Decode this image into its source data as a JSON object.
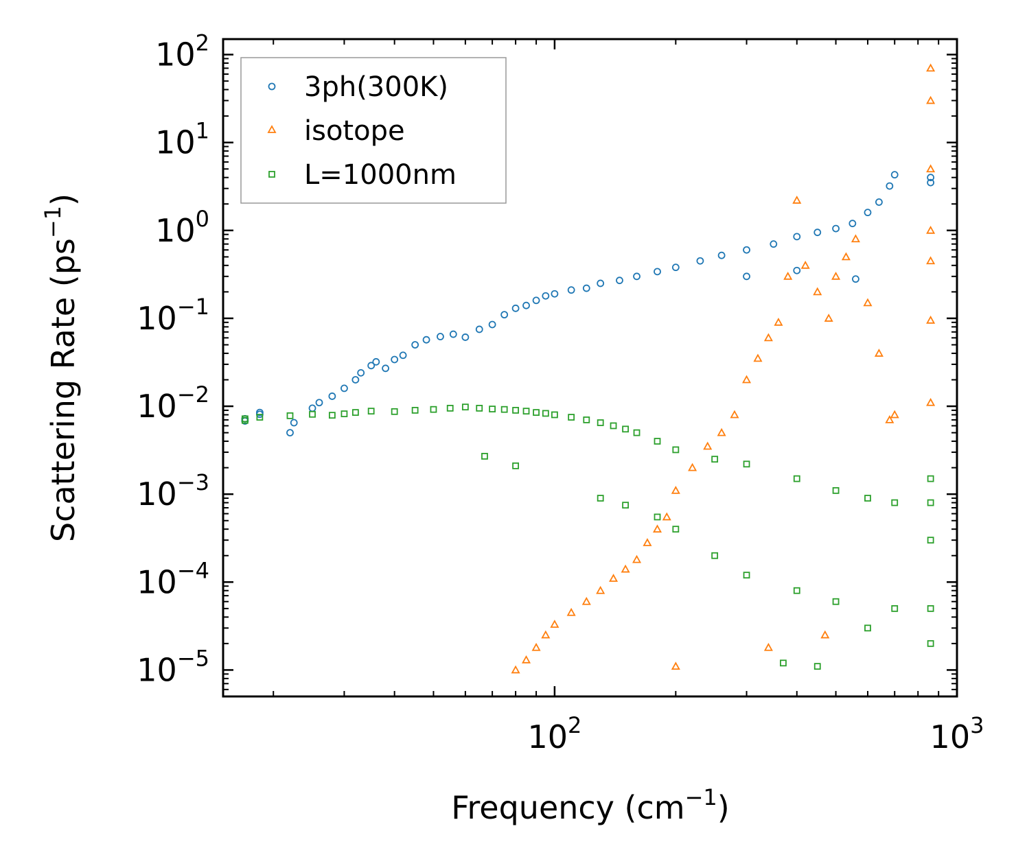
{
  "chart_data": {
    "type": "scatter",
    "title": "",
    "xlabel": "Frequency (cm",
    "xlabel_sup": "−1",
    "xlabel_close": ")",
    "ylabel": "Scattering Rate (ps",
    "ylabel_sup": "−1",
    "ylabel_close": ")",
    "xscale": "log",
    "yscale": "log",
    "xlim": [
      15,
      1000
    ],
    "ylim": [
      5e-06,
      150
    ],
    "legend_position": "top-left",
    "x_ticks": [
      {
        "value": 100,
        "base": "10",
        "exp": "2"
      },
      {
        "value": 1000,
        "base": "10",
        "exp": "3"
      }
    ],
    "y_ticks": [
      {
        "value": 100,
        "base": "10",
        "exp": "2"
      },
      {
        "value": 10,
        "base": "10",
        "exp": "1"
      },
      {
        "value": 1,
        "base": "10",
        "exp": "0"
      },
      {
        "value": 0.1,
        "base": "10",
        "exp": "−1"
      },
      {
        "value": 0.01,
        "base": "10",
        "exp": "−2"
      },
      {
        "value": 0.001,
        "base": "10",
        "exp": "−3"
      },
      {
        "value": 0.0001,
        "base": "10",
        "exp": "−4"
      },
      {
        "value": 1e-05,
        "base": "10",
        "exp": "−5"
      }
    ],
    "series": [
      {
        "name": "3ph(300K)",
        "marker": "circle",
        "color": "#1f77b4",
        "points": [
          [
            17,
            0.0068
          ],
          [
            17,
            0.0072
          ],
          [
            18.5,
            0.0081
          ],
          [
            18.5,
            0.0085
          ],
          [
            22,
            0.005
          ],
          [
            22.5,
            0.0065
          ],
          [
            25,
            0.0095
          ],
          [
            26,
            0.011
          ],
          [
            28,
            0.013
          ],
          [
            30,
            0.016
          ],
          [
            32,
            0.02
          ],
          [
            33,
            0.024
          ],
          [
            35,
            0.029
          ],
          [
            36,
            0.032
          ],
          [
            38,
            0.027
          ],
          [
            40,
            0.034
          ],
          [
            42,
            0.038
          ],
          [
            45,
            0.05
          ],
          [
            48,
            0.057
          ],
          [
            52,
            0.062
          ],
          [
            56,
            0.066
          ],
          [
            60,
            0.061
          ],
          [
            65,
            0.075
          ],
          [
            70,
            0.085
          ],
          [
            75,
            0.11
          ],
          [
            80,
            0.13
          ],
          [
            85,
            0.14
          ],
          [
            90,
            0.16
          ],
          [
            95,
            0.18
          ],
          [
            100,
            0.19
          ],
          [
            110,
            0.21
          ],
          [
            120,
            0.22
          ],
          [
            130,
            0.25
          ],
          [
            145,
            0.27
          ],
          [
            160,
            0.3
          ],
          [
            180,
            0.34
          ],
          [
            200,
            0.38
          ],
          [
            230,
            0.45
          ],
          [
            260,
            0.52
          ],
          [
            300,
            0.6
          ],
          [
            350,
            0.7
          ],
          [
            400,
            0.85
          ],
          [
            450,
            0.95
          ],
          [
            500,
            1.05
          ],
          [
            550,
            1.2
          ],
          [
            600,
            1.6
          ],
          [
            640,
            2.1
          ],
          [
            680,
            3.2
          ],
          [
            700,
            4.3
          ],
          [
            860,
            3.5
          ],
          [
            860,
            4.0
          ],
          [
            300,
            0.3
          ],
          [
            400,
            0.35
          ],
          [
            560,
            0.28
          ]
        ]
      },
      {
        "name": "isotope",
        "marker": "triangle",
        "color": "#ff7f0e",
        "points": [
          [
            80,
            1e-05
          ],
          [
            85,
            1.3e-05
          ],
          [
            90,
            1.8e-05
          ],
          [
            95,
            2.5e-05
          ],
          [
            100,
            3.3e-05
          ],
          [
            110,
            4.5e-05
          ],
          [
            120,
            6e-05
          ],
          [
            130,
            8e-05
          ],
          [
            140,
            0.00011
          ],
          [
            150,
            0.00014
          ],
          [
            160,
            0.00018
          ],
          [
            170,
            0.00028
          ],
          [
            180,
            0.0004
          ],
          [
            190,
            0.00055
          ],
          [
            200,
            0.0011
          ],
          [
            220,
            0.002
          ],
          [
            240,
            0.0035
          ],
          [
            260,
            0.005
          ],
          [
            280,
            0.008
          ],
          [
            300,
            0.02
          ],
          [
            320,
            0.035
          ],
          [
            340,
            0.06
          ],
          [
            360,
            0.09
          ],
          [
            380,
            0.3
          ],
          [
            400,
            2.2
          ],
          [
            420,
            0.4
          ],
          [
            450,
            0.2
          ],
          [
            480,
            0.1
          ],
          [
            500,
            0.3
          ],
          [
            530,
            0.5
          ],
          [
            560,
            0.8
          ],
          [
            600,
            0.15
          ],
          [
            640,
            0.04
          ],
          [
            680,
            0.007
          ],
          [
            700,
            0.008
          ],
          [
            860,
            70
          ],
          [
            860,
            30
          ],
          [
            860,
            5
          ],
          [
            860,
            1
          ],
          [
            860,
            0.45
          ],
          [
            860,
            0.095
          ],
          [
            860,
            0.011
          ],
          [
            200,
            1.1e-05
          ],
          [
            340,
            1.8e-05
          ],
          [
            470,
            2.5e-05
          ]
        ]
      },
      {
        "name": "L=1000nm",
        "marker": "square",
        "color": "#2ca02c",
        "points": [
          [
            17,
            0.0069
          ],
          [
            17,
            0.0072
          ],
          [
            18.5,
            0.0075
          ],
          [
            22,
            0.0078
          ],
          [
            25,
            0.0081
          ],
          [
            28,
            0.0079
          ],
          [
            30,
            0.0082
          ],
          [
            32,
            0.0085
          ],
          [
            35,
            0.0088
          ],
          [
            40,
            0.0087
          ],
          [
            45,
            0.009
          ],
          [
            50,
            0.0092
          ],
          [
            55,
            0.0095
          ],
          [
            60,
            0.0098
          ],
          [
            65,
            0.0095
          ],
          [
            70,
            0.0093
          ],
          [
            75,
            0.0092
          ],
          [
            80,
            0.009
          ],
          [
            85,
            0.0088
          ],
          [
            90,
            0.0085
          ],
          [
            95,
            0.0083
          ],
          [
            100,
            0.008
          ],
          [
            110,
            0.0075
          ],
          [
            120,
            0.007
          ],
          [
            130,
            0.0065
          ],
          [
            140,
            0.006
          ],
          [
            150,
            0.0055
          ],
          [
            160,
            0.005
          ],
          [
            180,
            0.004
          ],
          [
            200,
            0.0032
          ],
          [
            250,
            0.0025
          ],
          [
            300,
            0.0022
          ],
          [
            400,
            0.0015
          ],
          [
            500,
            0.0011
          ],
          [
            600,
            0.0009
          ],
          [
            700,
            0.0008
          ],
          [
            67,
            0.0027
          ],
          [
            80,
            0.0021
          ],
          [
            130,
            0.0009
          ],
          [
            150,
            0.00075
          ],
          [
            180,
            0.00055
          ],
          [
            200,
            0.0004
          ],
          [
            250,
            0.0002
          ],
          [
            300,
            0.00012
          ],
          [
            400,
            8e-05
          ],
          [
            500,
            6e-05
          ],
          [
            600,
            3e-05
          ],
          [
            700,
            5e-05
          ],
          [
            860,
            0.0015
          ],
          [
            860,
            0.0008
          ],
          [
            860,
            0.0003
          ],
          [
            860,
            5e-05
          ],
          [
            860,
            2e-05
          ],
          [
            370,
            1.2e-05
          ],
          [
            450,
            1.1e-05
          ]
        ]
      }
    ]
  }
}
